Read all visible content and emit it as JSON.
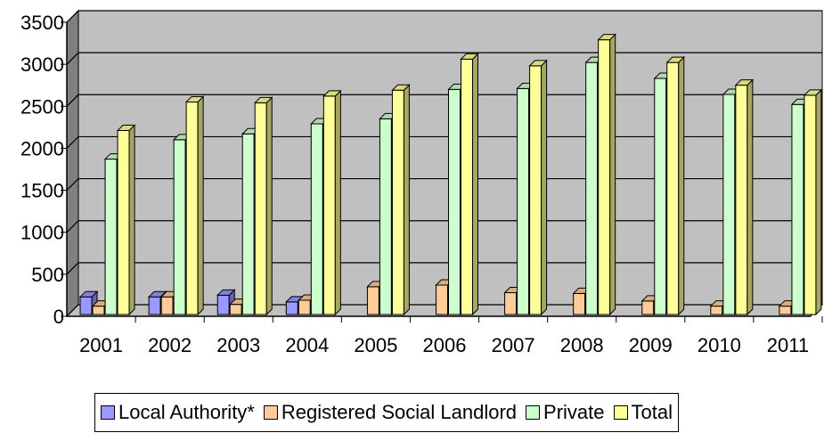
{
  "chart_data": {
    "type": "bar",
    "title": "",
    "xlabel": "",
    "ylabel": "",
    "categories": [
      "2001",
      "2002",
      "2003",
      "2004",
      "2005",
      "2006",
      "2007",
      "2008",
      "2009",
      "2010",
      "2011"
    ],
    "ylim": [
      0,
      3500
    ],
    "yticks": [
      0,
      500,
      1000,
      1500,
      2000,
      2500,
      3000,
      3500
    ],
    "grid": true,
    "style": "3d-clustered-column",
    "plot_background": "#c0c0c0",
    "legend_position": "bottom",
    "series": [
      {
        "name": "Local Authority*",
        "color": "#9999ff",
        "values": [
          210,
          210,
          230,
          150,
          0,
          0,
          0,
          0,
          0,
          0,
          0
        ]
      },
      {
        "name": "Registered Social Landlord",
        "color": "#ffcc99",
        "values": [
          100,
          210,
          120,
          170,
          330,
          350,
          260,
          250,
          160,
          100,
          100
        ]
      },
      {
        "name": "Private",
        "color": "#ccffcc",
        "values": [
          1850,
          2080,
          2150,
          2270,
          2330,
          2680,
          2690,
          3000,
          2810,
          2620,
          2500
        ]
      },
      {
        "name": "Total",
        "color": "#ffff99",
        "values": [
          2190,
          2530,
          2520,
          2600,
          2670,
          3040,
          2960,
          3270,
          3000,
          2730,
          2610
        ]
      }
    ]
  }
}
